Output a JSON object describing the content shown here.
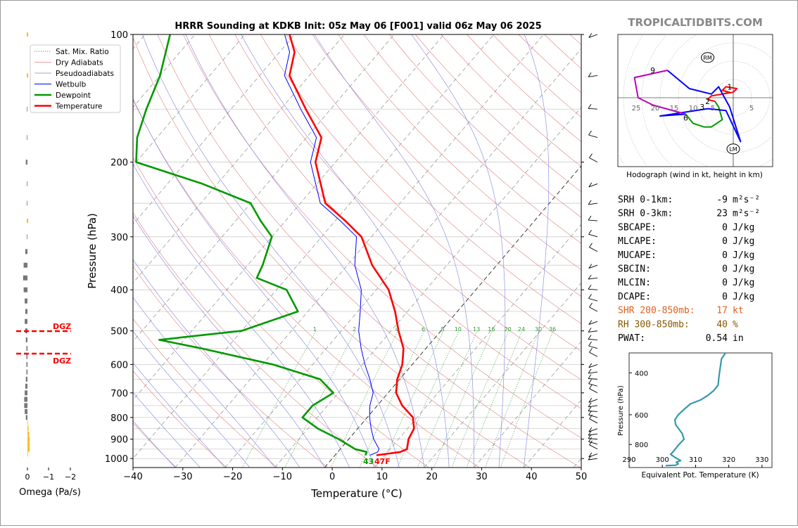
{
  "title": "HRRR Sounding at KDKB Init: 05z May 06 [F001] valid 06z May 06 2025",
  "watermark": "TROPICALTIDBITS.COM",
  "colors": {
    "temperature": "#ff0000",
    "dewpoint": "#009900",
    "wetbulb": "#0000ff",
    "dry_adiabat": "#e08080",
    "moist_adiabat": "#8080e0",
    "mixing_ratio": "#339933",
    "hodo_0_3": "#ff0000",
    "hodo_3_6": "#009900",
    "hodo_6_9": "#0000ff",
    "hodo_9_12": "#bb00bb",
    "theta_e": "#3399aa",
    "omega_up": "#777777",
    "omega_down": "#ffbb22",
    "shr_text": "#e06020",
    "rh_text": "#885500"
  },
  "legend": [
    "Sat. Mix. Ratio",
    "Dry Adiabats",
    "Pseudoadiabats",
    "Wetbulb",
    "Dewpoint",
    "Temperature"
  ],
  "skewt": {
    "xlabel": "Temperature (°C)",
    "ylabel": "Pressure (hPa)",
    "x_ticks": [
      "−40",
      "−30",
      "−20",
      "−10",
      "0",
      "10",
      "20",
      "30",
      "40",
      "50"
    ],
    "y_ticks": [
      "100",
      "200",
      "300",
      "400",
      "500",
      "600",
      "700",
      "800",
      "900",
      "1000"
    ],
    "mixing_ratio_labels": [
      "1",
      "2",
      "4",
      "6",
      "8",
      "10",
      "13",
      "16",
      "20",
      "24",
      "30",
      "36"
    ],
    "surface_temp_label": "47F",
    "surface_dew_label": "43"
  },
  "omega": {
    "xlabel": "Omega (Pa/s)",
    "x_ticks": [
      "0",
      "−1",
      "−2"
    ],
    "dgz_label": "DGZ"
  },
  "hodograph": {
    "caption": "Hodograph (wind in kt, height in km)",
    "ring_labels": [
      "25",
      "20",
      "15",
      "10",
      "5",
      "5"
    ],
    "rm_label": "RM",
    "lm_label": "LM",
    "height_labels": [
      "1",
      "2",
      "3",
      "6",
      "9"
    ]
  },
  "params": [
    {
      "label": "SRH 0-1km:",
      "value": "-9",
      "unit": "m²s⁻²",
      "color": "#000000"
    },
    {
      "label": "SRH 0-3km:",
      "value": "23",
      "unit": "m²s⁻²",
      "color": "#000000"
    },
    {
      "label": "SBCAPE:",
      "value": "0",
      "unit": "J/kg",
      "color": "#000000"
    },
    {
      "label": "MLCAPE:",
      "value": "0",
      "unit": "J/kg",
      "color": "#000000"
    },
    {
      "label": "MUCAPE:",
      "value": "0",
      "unit": "J/kg",
      "color": "#000000"
    },
    {
      "label": "SBCIN:",
      "value": "0",
      "unit": "J/kg",
      "color": "#000000"
    },
    {
      "label": "MLCIN:",
      "value": "0",
      "unit": "J/kg",
      "color": "#000000"
    },
    {
      "label": "DCAPE:",
      "value": "0",
      "unit": "J/kg",
      "color": "#000000"
    },
    {
      "label": "SHR 200-850mb:",
      "value": "17",
      "unit": "kt",
      "color": "#e06020"
    },
    {
      "label": "RH 300-850mb:",
      "value": "40",
      "unit": "%",
      "color": "#885500"
    },
    {
      "label": "PWAT:",
      "value": "0.54",
      "unit": "in",
      "color": "#000000"
    }
  ],
  "theta_e_panel": {
    "xlabel": "Equivalent Pot. Temperature (K)",
    "ylabel": "Pressure (hPa)",
    "x_ticks": [
      "290",
      "300",
      "310",
      "320",
      "330"
    ],
    "y_ticks": [
      "400",
      "600",
      "800"
    ]
  },
  "chart_data": [
    {
      "type": "line",
      "title": "HRRR Sounding at KDKB Init: 05z May 06 [F001] valid 06z May 06 2025",
      "xlabel": "Temperature (°C)",
      "ylabel": "Pressure (hPa)",
      "xlim": [
        -40,
        50
      ],
      "ylim": [
        1050,
        100
      ],
      "y_scale": "log",
      "skew": true,
      "legend_position": "top-left",
      "series": [
        {
          "name": "Temperature",
          "x_unit": "degC",
          "points": [
            [
              8.3,
              982
            ],
            [
              12.5,
              965
            ],
            [
              13.4,
              950
            ],
            [
              12.0,
              900
            ],
            [
              11.3,
              850
            ],
            [
              9.2,
              800
            ],
            [
              5.0,
              750
            ],
            [
              1.6,
              700
            ],
            [
              -0.5,
              650
            ],
            [
              -2.0,
              600
            ],
            [
              -4.5,
              550
            ],
            [
              -8.5,
              500
            ],
            [
              -12.5,
              450
            ],
            [
              -17.5,
              400
            ],
            [
              -25.0,
              350
            ],
            [
              -32.0,
              300
            ],
            [
              -38.0,
              275
            ],
            [
              -45.0,
              250
            ],
            [
              -54.0,
              200
            ],
            [
              -57.0,
              175
            ],
            [
              -65.0,
              150
            ],
            [
              -74.0,
              125
            ],
            [
              -77.0,
              110
            ],
            [
              -81.0,
              100
            ]
          ]
        },
        {
          "name": "Dewpoint",
          "x_unit": "degC",
          "points": [
            [
              6.1,
              982
            ],
            [
              5.8,
              965
            ],
            [
              3.0,
              950
            ],
            [
              -2.0,
              900
            ],
            [
              -8.0,
              850
            ],
            [
              -13.0,
              800
            ],
            [
              -13.0,
              750
            ],
            [
              -11.0,
              700
            ],
            [
              -16.0,
              650
            ],
            [
              -28.0,
              600
            ],
            [
              -45.0,
              550
            ],
            [
              -55.0,
              525
            ],
            [
              -40.0,
              500
            ],
            [
              -32.0,
              450
            ],
            [
              -38.0,
              400
            ],
            [
              -46.0,
              375
            ],
            [
              -47.0,
              350
            ],
            [
              -50.0,
              300
            ],
            [
              -55.0,
              275
            ],
            [
              -60.0,
              250
            ],
            [
              -73.0,
              225
            ],
            [
              -90.0,
              200
            ],
            [
              -94.0,
              175
            ],
            [
              -97.0,
              150
            ],
            [
              -100.0,
              125
            ],
            [
              -105.0,
              100
            ]
          ]
        },
        {
          "name": "Wetbulb",
          "x_unit": "degC",
          "points": [
            [
              7.0,
              982
            ],
            [
              8.0,
              965
            ],
            [
              7.8,
              950
            ],
            [
              5.0,
              900
            ],
            [
              2.7,
              850
            ],
            [
              0.5,
              800
            ],
            [
              -1.5,
              750
            ],
            [
              -3.0,
              700
            ],
            [
              -6.0,
              650
            ],
            [
              -9.5,
              600
            ],
            [
              -13.0,
              550
            ],
            [
              -16.5,
              500
            ],
            [
              -19.5,
              450
            ],
            [
              -23.0,
              400
            ],
            [
              -28.5,
              350
            ],
            [
              -33.0,
              300
            ],
            [
              -39.0,
              275
            ],
            [
              -46.0,
              250
            ],
            [
              -55.0,
              200
            ],
            [
              -58.0,
              175
            ],
            [
              -66.0,
              150
            ],
            [
              -75.0,
              125
            ],
            [
              -78.0,
              110
            ],
            [
              -82.0,
              100
            ]
          ]
        }
      ]
    },
    {
      "type": "bar",
      "xlabel": "Omega (Pa/s)",
      "xlim": [
        0.4,
        -2.1
      ],
      "y_scale": "log",
      "pressure_hpa": [
        100,
        125,
        150,
        175,
        200,
        225,
        250,
        275,
        300,
        325,
        350,
        375,
        400,
        425,
        450,
        475,
        500,
        525,
        550,
        575,
        600,
        625,
        650,
        675,
        700,
        725,
        750,
        775,
        800,
        825,
        850,
        875,
        900,
        925,
        950,
        975
      ],
      "values": [
        0.0,
        0.0,
        -0.05,
        -0.05,
        -0.15,
        -0.05,
        -0.05,
        0.0,
        -0.05,
        -0.2,
        -0.35,
        -0.4,
        -0.35,
        -0.25,
        -0.2,
        -0.25,
        -0.2,
        -0.15,
        -0.1,
        -0.1,
        -0.1,
        -0.1,
        -0.15,
        -0.2,
        -0.25,
        -0.3,
        -0.3,
        -0.25,
        -0.15,
        0.05,
        0.1,
        0.15,
        0.2,
        0.2,
        0.2,
        0.05
      ],
      "dgz_hpa": [
        502,
        565
      ]
    },
    {
      "type": "line",
      "title": "Hodograph (wind in kt, height in km)",
      "xlabel": "u (kt)",
      "ylabel": "v (kt)",
      "series": [
        {
          "name": "0-3 km",
          "u": [
            -3.0,
            -1.0,
            -3.0,
            -2.0,
            1.0,
            0.0,
            -3.0,
            -6.0,
            -7.0,
            -5.0
          ],
          "v": [
            1.0,
            1.5,
            2.0,
            3.0,
            2.5,
            1.5,
            1.0,
            0.5,
            -0.5,
            -1.0
          ]
        },
        {
          "name": "3-6 km",
          "u": [
            -5.0,
            -4.0,
            -3.0,
            -6.0,
            -8.0,
            -11.0,
            -13.0
          ],
          "v": [
            -1.0,
            -2.5,
            -6.0,
            -8.0,
            -8.0,
            -7.0,
            -4.5
          ]
        },
        {
          "name": "6-9 km",
          "u": [
            -13.0,
            -20.0,
            -7.0,
            -2.0,
            2.0,
            -1.0,
            -4.0,
            -6.0,
            -12.0,
            -18.0
          ],
          "v": [
            -4.5,
            -5.0,
            -3.0,
            -3.5,
            -12.0,
            -2.5,
            3.0,
            1.0,
            2.5,
            7.5
          ]
        },
        {
          "name": "9-12 km",
          "u": [
            -18.0,
            -27.0,
            -26.0,
            -22.0,
            -13.0
          ],
          "v": [
            7.5,
            5.5,
            0.0,
            -2.0,
            -4.5
          ]
        }
      ],
      "rm": [
        -7.0,
        11.0
      ],
      "lm": [
        0.0,
        -14.0
      ]
    },
    {
      "type": "line",
      "xlabel": "Equivalent Pot. Temperature (K)",
      "ylabel": "Pressure (hPa)",
      "xlim": [
        290,
        333
      ],
      "ylim": [
        1000,
        330
      ],
      "series": [
        {
          "name": "Theta-e",
          "points": [
            [
              301.0,
              982
            ],
            [
              304.0,
              978
            ],
            [
              304.8,
              965
            ],
            [
              304.2,
              950
            ],
            [
              305.5,
              935
            ],
            [
              304.0,
              910
            ],
            [
              302.5,
              880
            ],
            [
              303.5,
              850
            ],
            [
              305.0,
              800
            ],
            [
              306.5,
              760
            ],
            [
              306.0,
              720
            ],
            [
              305.0,
              690
            ],
            [
              304.0,
              660
            ],
            [
              303.8,
              630
            ],
            [
              304.8,
              600
            ],
            [
              306.5,
              570
            ],
            [
              308.5,
              540
            ],
            [
              311.5,
              520
            ],
            [
              313.5,
              500
            ],
            [
              315.5,
              475
            ],
            [
              316.8,
              450
            ],
            [
              317.0,
              420
            ],
            [
              317.2,
              400
            ],
            [
              317.5,
              375
            ],
            [
              317.8,
              350
            ],
            [
              319.0,
              330
            ]
          ]
        }
      ]
    }
  ]
}
